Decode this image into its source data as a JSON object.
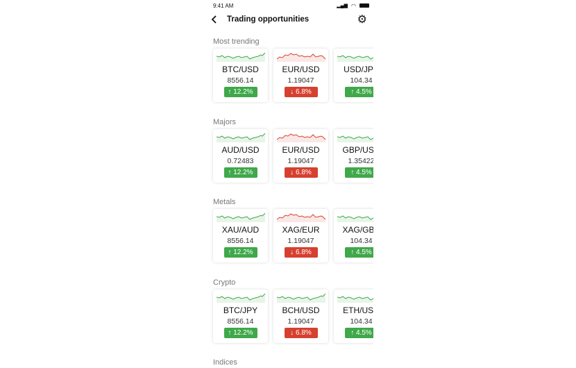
{
  "status": {
    "time": "9:41 AM"
  },
  "header": {
    "title": "Trading opportunities",
    "back_icon": "chevron-left",
    "settings_icon": "gear"
  },
  "colors": {
    "up": "#3fa84a",
    "down": "#d6402f"
  },
  "sections": [
    {
      "title": "Most trending",
      "cards": [
        {
          "symbol": "BTC/USD",
          "price": "8556.14",
          "change": "↑ 12.2%",
          "dir": "up",
          "spark": "up"
        },
        {
          "symbol": "EUR/USD",
          "price": "1.19047",
          "change": "↓ 6.8%",
          "dir": "down",
          "spark": "down"
        },
        {
          "symbol": "USD/JPY",
          "price": "104.34",
          "change": "↑ 4.5%",
          "dir": "up",
          "spark": "up"
        }
      ]
    },
    {
      "title": "Majors",
      "cards": [
        {
          "symbol": "AUD/USD",
          "price": "0.72483",
          "change": "↑ 12.2%",
          "dir": "up",
          "spark": "up"
        },
        {
          "symbol": "EUR/USD",
          "price": "1.19047",
          "change": "↓ 6.8%",
          "dir": "down",
          "spark": "down"
        },
        {
          "symbol": "GBP/USD",
          "price": "1.35422",
          "change": "↑ 4.5%",
          "dir": "up",
          "spark": "up"
        }
      ]
    },
    {
      "title": "Metals",
      "cards": [
        {
          "symbol": "XAU/AUD",
          "price": "8556.14",
          "change": "↑ 12.2%",
          "dir": "up",
          "spark": "up"
        },
        {
          "symbol": "XAG/EUR",
          "price": "1.19047",
          "change": "↓ 6.8%",
          "dir": "down",
          "spark": "down"
        },
        {
          "symbol": "XAG/GBP",
          "price": "104.34",
          "change": "↑ 4.5%",
          "dir": "up",
          "spark": "up"
        }
      ]
    },
    {
      "title": "Crypto",
      "cards": [
        {
          "symbol": "BTC/JPY",
          "price": "8556.14",
          "change": "↑ 12.2%",
          "dir": "up",
          "spark": "up"
        },
        {
          "symbol": "BCH/USD",
          "price": "1.19047",
          "change": "↓ 6.8%",
          "dir": "down",
          "spark": "up"
        },
        {
          "symbol": "ETH/USD",
          "price": "104.34",
          "change": "↑ 4.5%",
          "dir": "up",
          "spark": "up"
        }
      ]
    },
    {
      "title": "Indices",
      "cards": []
    }
  ]
}
